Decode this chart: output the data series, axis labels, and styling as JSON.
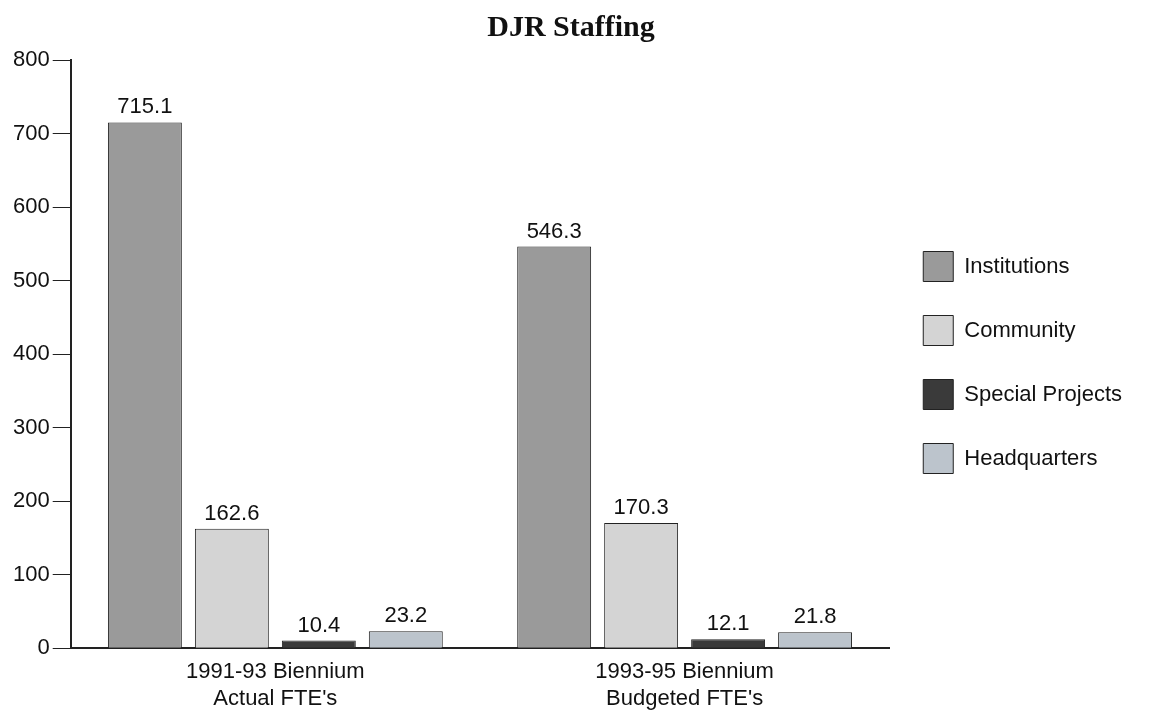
{
  "chart_data": {
    "type": "bar",
    "title": "DJR Staffing",
    "categories": [
      "1991-93 Biennium\nActual FTE's",
      "1993-95 Biennium\nBudgeted FTE's"
    ],
    "series": [
      {
        "name": "Institutions",
        "color": "#9a9a9a",
        "values": [
          715.1,
          546.3
        ]
      },
      {
        "name": "Community",
        "color": "#d4d4d4",
        "values": [
          162.6,
          170.3
        ]
      },
      {
        "name": "Special Projects",
        "color": "#3a3a3a",
        "values": [
          10.4,
          12.1
        ]
      },
      {
        "name": "Headquarters",
        "color": "#bcc4cc",
        "values": [
          23.2,
          21.8
        ]
      }
    ],
    "ylim": [
      0,
      800
    ],
    "yticks": [
      0,
      100,
      200,
      300,
      400,
      500,
      600,
      700,
      800
    ],
    "grid": false,
    "legend": "right",
    "data_labels": true
  }
}
